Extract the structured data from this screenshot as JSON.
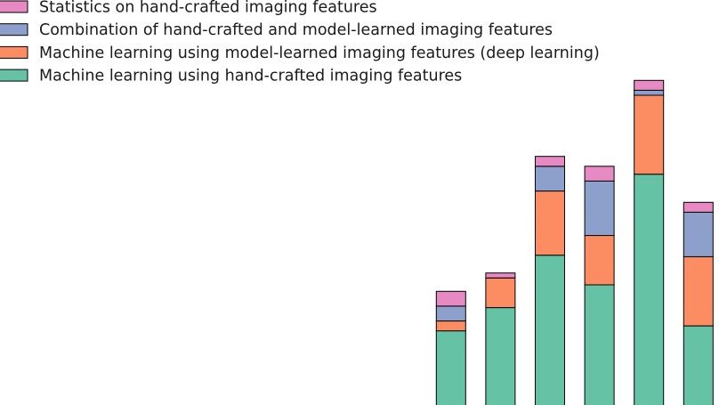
{
  "chart_data": {
    "type": "bar",
    "stacked": true,
    "grid": false,
    "legend_position": "top-left",
    "categories": [
      "",
      "",
      "",
      "",
      "",
      "",
      "",
      "",
      "",
      "",
      "",
      "",
      "",
      ""
    ],
    "ylim": [
      0,
      75
    ],
    "series": [
      {
        "name": "Machine learning using hand-crafted imaging features",
        "color": "#66c2a5",
        "values": [
          0,
          0,
          0,
          0,
          0,
          0,
          0,
          0.8,
          17,
          21.7,
          32.3,
          26.3,
          48.7,
          18
        ]
      },
      {
        "name": "Machine learning using model-learned imaging features (deep learning)",
        "color": "#fc8d62",
        "values": [
          0,
          0,
          0,
          0,
          0,
          0,
          0,
          1,
          2,
          6,
          13,
          10,
          16,
          14
        ]
      },
      {
        "name": "Combination of hand-crafted and model-learned imaging features",
        "color": "#8da0cb",
        "values": [
          0,
          0,
          0,
          0,
          0,
          0,
          0,
          0,
          3,
          0,
          5,
          11,
          1,
          9
        ]
      },
      {
        "name": "Statistics on hand-crafted imaging features",
        "color": "#e78ac3",
        "values": [
          0,
          0,
          0,
          0,
          0,
          0,
          0,
          0,
          3,
          1,
          2,
          3,
          2,
          2
        ]
      }
    ]
  }
}
